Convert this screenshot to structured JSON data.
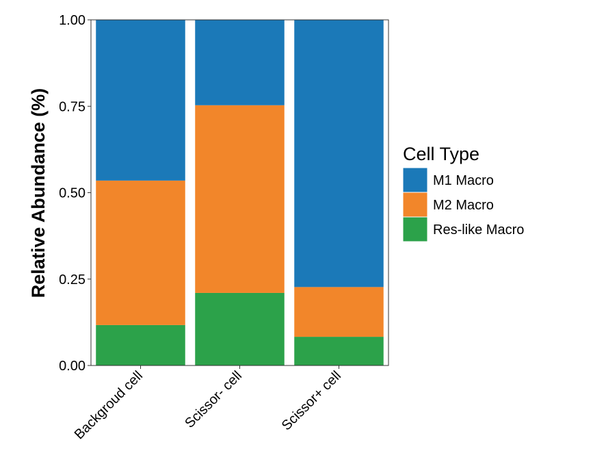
{
  "chart_data": {
    "type": "bar",
    "stacked": true,
    "categories": [
      "Backgroud cell",
      "Scissor- cell",
      "Scissor+ cell"
    ],
    "series": [
      {
        "name": "Res-like Macro",
        "color": "#2ca24a",
        "values": [
          0.117,
          0.21,
          0.083
        ]
      },
      {
        "name": "M2 Macro",
        "color": "#f2862a",
        "values": [
          0.418,
          0.543,
          0.144
        ]
      },
      {
        "name": "M1 Macro",
        "color": "#1b79b8",
        "values": [
          0.465,
          0.247,
          0.773
        ]
      }
    ],
    "ylabel": "Relative Abundance (%)",
    "xlabel": "",
    "ylim": [
      0,
      1
    ],
    "yticks": [
      0,
      0.25,
      0.5,
      0.75,
      1
    ],
    "ytick_labels": [
      "0.00",
      "0.25",
      "0.50",
      "0.75",
      "1.00"
    ],
    "grid": false,
    "legend": {
      "title": "Cell Type",
      "placement": "right",
      "entries": [
        {
          "label": "M1 Macro",
          "color": "#1b79b8"
        },
        {
          "label": "M2 Macro",
          "color": "#f2862a"
        },
        {
          "label": "Res-like Macro",
          "color": "#2ca24a"
        }
      ]
    }
  }
}
